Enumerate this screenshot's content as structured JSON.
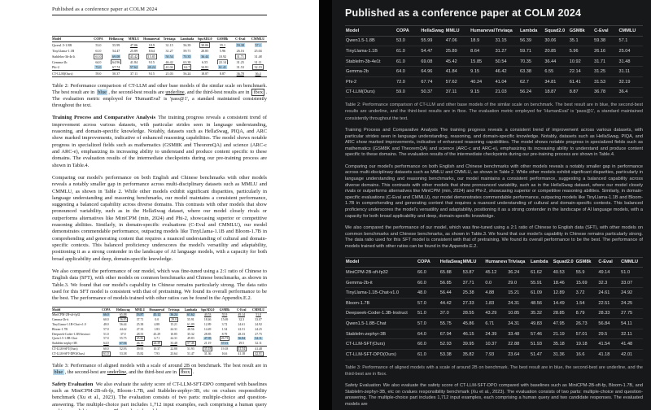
{
  "paper": {
    "running_head": "Published as a conference paper at COLM 2024",
    "dark_title": "Published as a conference paper at COLM 2024",
    "page_number": "7"
  },
  "table2": {
    "columns_light": [
      "Model",
      "COPA",
      "Hellaswag",
      "MMLU",
      "Humaneval",
      "Triviaqa",
      "Lambada",
      "SquAD2.0",
      "GSM8k",
      "C-Eval",
      "CMMLU"
    ],
    "columns_dark": [
      "Model",
      "COPA",
      "HellaSwag",
      "MMLU",
      "Humaneval",
      "Triviaqa",
      "Lambda",
      "Squad2.0",
      "GSM8k",
      "C-Eval",
      "CMMLU"
    ],
    "rows": [
      {
        "model": "Qwen1.5-1.8B",
        "cells": [
          "53.0",
          "55.99",
          "47.06",
          "18.9",
          "31.15",
          "56.39",
          "30.06",
          "35.1",
          "59.38",
          "57.1"
        ],
        "styles": [
          "",
          "",
          "u",
          "u",
          "",
          "",
          "f",
          "u",
          "b",
          "b"
        ]
      },
      {
        "model": "TinyLlama-1.1B",
        "cells": [
          "61.0",
          "54.47",
          "25.89",
          "8.64",
          "31.27",
          "59.71",
          "20.85",
          "5.96",
          "26.16",
          "25.04"
        ],
        "styles": [
          "",
          "",
          "",
          "",
          "",
          "",
          "",
          "",
          "",
          ""
        ]
      },
      {
        "model": "Stablelm-3b-4e1t",
        "cells": [
          "61.0",
          "69.08",
          "45.42",
          "15.85",
          "50.54",
          "70.35",
          "36.44",
          "10.92",
          "31.71",
          "31.48"
        ],
        "styles": [
          "f",
          "b",
          "f",
          "f",
          "b",
          "b",
          "b",
          "",
          "f",
          ""
        ]
      },
      {
        "model": "Gemma-2b",
        "cells": [
          "64.0",
          "64.96",
          "41.84",
          "9.15",
          "46.42",
          "63.38",
          "6.55",
          "22.14",
          "31.25",
          "31.11"
        ],
        "styles": [
          "u",
          "f",
          "",
          "",
          "u",
          "u",
          "",
          "f",
          "",
          ""
        ]
      },
      {
        "model": "Phi-2",
        "cells": [
          "72.0",
          "67.74",
          "57.62",
          "40.24",
          "41.04",
          "62.7",
          "34.81",
          "61.41",
          "31.53",
          "32.19"
        ],
        "styles": [
          "b",
          "u",
          "b",
          "b",
          "f",
          "f",
          "u",
          "b",
          "",
          "f"
        ]
      },
      {
        "model": "CT-LLM(Ours)",
        "cells": [
          "59.0",
          "50.37",
          "37.11",
          "9.15",
          "21.03",
          "56.24",
          "18.87",
          "8.87",
          "36.78",
          "36.4"
        ],
        "styles": [
          "",
          "",
          "",
          "",
          "",
          "",
          "",
          "",
          "u",
          "u"
        ]
      }
    ],
    "separator_before_row": 5
  },
  "table3": {
    "columns_light": [
      "Model",
      "COPA",
      "Hellaswag",
      "MMLU",
      "Humaneval",
      "Triviaqa",
      "Lambada",
      "SquAD2.0",
      "GSM8k",
      "C-Eval",
      "CMMLU"
    ],
    "columns_dark": [
      "Model",
      "COPA",
      "HellaSwag",
      "MMLU",
      "Humaneval",
      "Triviaqa",
      "Lambda",
      "Squad2.0",
      "GSM8k",
      "C-Eval",
      "CMMLU"
    ],
    "rows": [
      {
        "model": "MiniCPM-2B-sft-fp32",
        "cells": [
          "66.0",
          "65.88",
          "53.87",
          "45.12",
          "36.24",
          "61.62",
          "40.53",
          "55.9",
          "49.14",
          "51.0"
        ],
        "styles": [
          "b",
          "u",
          "b",
          "b",
          "b",
          "b",
          "u",
          "u",
          "u",
          "u"
        ]
      },
      {
        "model": "Gemma-2b-it",
        "cells": [
          "60.0",
          "56.85",
          "37.71",
          "0.0",
          "29.0",
          "55.91",
          "18.46",
          "15.69",
          "32.3",
          "33.07"
        ],
        "styles": [
          "",
          "f",
          "",
          "",
          "f",
          "",
          "",
          "",
          "",
          ""
        ]
      },
      {
        "model": "TinyLlama-1.1B-Chat-v1.0",
        "cells": [
          "48.0",
          "56.44",
          "25.38",
          "4.88",
          "15.21",
          "61.09",
          "12.89",
          "3.72",
          "24.61",
          "24.92"
        ],
        "styles": [
          "",
          "",
          "",
          "",
          "",
          "u",
          "",
          "",
          "",
          ""
        ]
      },
      {
        "model": "Bloom-1.7B",
        "cells": [
          "57.0",
          "44.42",
          "27.33",
          "1.83",
          "24.31",
          "48.56",
          "14.49",
          "1.54",
          "22.51",
          "24.25"
        ],
        "styles": [
          "",
          "",
          "",
          "",
          "",
          "",
          "",
          "",
          "",
          ""
        ]
      },
      {
        "model": "Deepseek-Coder-1.3B-Instruct",
        "cells": [
          "51.0",
          "37.0",
          "28.55",
          "43.29",
          "10.85",
          "35.32",
          "28.85",
          "8.79",
          "28.33",
          "27.75"
        ],
        "styles": [
          "",
          "",
          "",
          "u",
          "",
          "",
          "",
          "",
          "",
          ""
        ]
      },
      {
        "model": "Qwen1.5-1.8B-Chat",
        "cells": [
          "57.0",
          "55.75",
          "45.86",
          "6.71",
          "24.31",
          "49.83",
          "47.95",
          "26.73",
          "56.84",
          "54.11"
        ],
        "styles": [
          "",
          "",
          "f",
          "",
          "",
          "",
          "b",
          "f",
          "b",
          "b"
        ]
      },
      {
        "model": "Stablelm-zephyr-3B",
        "cells": [
          "64.0",
          "67.94",
          "46.15",
          "24.39",
          "33.48",
          "57.46",
          "21.19",
          "57.01",
          "29.5",
          "32.11"
        ],
        "styles": [
          "u",
          "b",
          "u",
          "f",
          "u",
          "f",
          "",
          "b",
          "",
          ""
        ]
      },
      {
        "model": "CT-LLM-SFT(Ours)",
        "cells": [
          "60.0",
          "52.93",
          "39.95",
          "10.37",
          "22.88",
          "51.93",
          "35.18",
          "19.18",
          "41.54",
          "41.48"
        ],
        "styles": [
          "",
          "",
          "",
          "",
          "",
          "",
          "f",
          "",
          "f",
          ""
        ]
      },
      {
        "model": "CT-LLM-SFT-DPO(Ours)",
        "cells": [
          "61.0",
          "53.38",
          "35.82",
          "7.93",
          "23.64",
          "51.47",
          "31.36",
          "16.6",
          "41.18",
          "42.01"
        ],
        "styles": [
          "f",
          "",
          "",
          "",
          "",
          "",
          "",
          "",
          "",
          "f"
        ]
      }
    ],
    "separator_before_row": 7
  },
  "caption_table2_segments": [
    {
      "t": "Table 2: Performance comparison of CT-LLM and other base models of the similar scale on benchmark. The best result are in "
    },
    {
      "t": "blue",
      "s": "blue"
    },
    {
      "t": ", the second-best results are "
    },
    {
      "t": "underline",
      "s": "u"
    },
    {
      "t": ", and the third-best results are in "
    },
    {
      "t": "fbox",
      "s": "fbox"
    },
    {
      "t": ". The evaluation metric employed for 'HumanEval' is 'pass@1', a standard maintained consistently throughout the text."
    }
  ],
  "caption_table3_segments": [
    {
      "t": "Table 3: Performance of aligned models with a scale of around 2B on benchmark. The best result are in "
    },
    {
      "t": "blue",
      "s": "blue"
    },
    {
      "t": ", the second-best are "
    },
    {
      "t": "underline",
      "s": "u"
    },
    {
      "t": ", and the third-best are in "
    },
    {
      "t": "fbox",
      "s": "fbox"
    },
    {
      "t": "."
    }
  ],
  "paragraphs": [
    {
      "heading": "Training Process and Comparative Analysis",
      "text": "The training progress reveals a consistent trend of improvement across various datasets, with particular strides seen in language understanding, reasoning, and domain-specific knowledge. Notably, datasets such as HellaSwag, PIQA, and ARC show marked improvements, indicative of enhanced reasoning capabilities. The model shows notable progress in specialized fields such as mathematics (GSM8K and TheoremQA) and science (ARC-c and ARC-e), emphasizing its increasing ability to understand and produce content specific to these domains. The evaluation results of the intermediate checkpoints during our pre-training process are shown in Table.4."
    },
    {
      "heading": "",
      "text": "Comparing our model's performance on both English and Chinese benchmarks with other models reveals a notably smaller gap in performance across multi-disciplinary datasets such as MMLU and CMMLU, as shown in Table 2. While other models exhibit significant disparities, particularly in language understanding and reasoning benchmarks, our model maintains a consistent performance, suggesting a balanced capability across diverse domains. This contrasts with other models that show pronounced variability, such as in the HellaSwag dataset, where our model closely rivals or outperforms alternatives like MiniCPM (min, 2024) and Phi-2, showcasing superior or competitive reasoning abilities. Similarly, in domain-specific evaluations (C-Eval and CMMLU), our model demonstrates commendable performance, outpacing models like TinyLlama-1.1B and Bloom-1.7B in comprehending and generating content that requires a nuanced understanding of cultural and domain-specific contexts. This balanced proficiency underscores the model's versatility and adaptability, positioning it as a strong contender in the landscape of AI language models, with a capacity for both broad applicability and deep, domain-specific knowledge."
    },
    {
      "heading": "",
      "text": "We also compared the performance of our model, which was fine-tuned using a 2:1 ratio of Chinese to English data (SFT), with other models on common benchmarks and Chinese benchmarks, as shown in Table.3. We found that our model's capability in Chinese remains particularly strong. The data ratio used for this SFT model is consistent with that of pretraining. We found its overall performance to be the best. The performance of models trained with other ratios can be found in the Appendix.E.2."
    }
  ],
  "safety_paragraph": {
    "heading": "Safety Evaluation",
    "text": "We also evaluate the safety score of CT-LLM-SFT-DPO compared with baselines such as MiniCPM-2B-sft-fp, Bloom-1.7B, and Stablelm-zephyr-3B, etc on cvalues responsibility benchmark (Xu et al., 2023). The evaluation consists of two parts: multiple-choice and question-answering. The multiple-choice part includes 1,712 input examples, each comprising a human query and two candidate responses. The evaluated models are"
  },
  "colors": {
    "highlight_blue": "#b5d7eb",
    "light_page_bg": "#ffffff",
    "dark_page_bg": "#17181a",
    "divider": "#050505"
  }
}
